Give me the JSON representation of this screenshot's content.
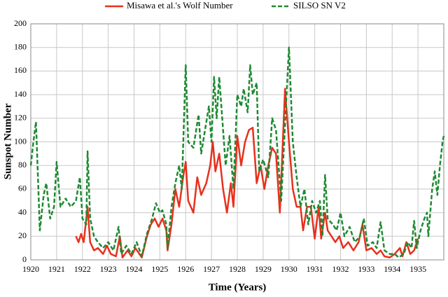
{
  "chart_data": {
    "type": "line",
    "xlabel": "Time (Years)",
    "ylabel": "Sunspot Number",
    "xlim": [
      1920,
      1936
    ],
    "xticks": [
      1920,
      1921,
      1922,
      1923,
      1924,
      1925,
      1926,
      1927,
      1928,
      1929,
      1930,
      1931,
      1932,
      1933,
      1934,
      1935
    ],
    "ylim": [
      0,
      200
    ],
    "yticks": [
      0,
      20,
      40,
      60,
      80,
      100,
      120,
      140,
      160,
      180,
      200
    ],
    "grid": true,
    "legend": "top",
    "series": [
      {
        "name": "Misawa et al.'s Wolf Number",
        "color": "#e8301c",
        "dash": false,
        "x": [
          1921.75,
          1921.85,
          1921.95,
          1922.05,
          1922.2,
          1922.3,
          1922.45,
          1922.6,
          1922.8,
          1922.95,
          1923.1,
          1923.3,
          1923.45,
          1923.55,
          1923.75,
          1923.9,
          1924.05,
          1924.3,
          1924.5,
          1924.65,
          1924.8,
          1924.95,
          1925.1,
          1925.25,
          1925.3,
          1925.45,
          1925.6,
          1925.75,
          1925.9,
          1926.0,
          1926.1,
          1926.3,
          1926.45,
          1926.6,
          1926.8,
          1926.95,
          1927.05,
          1927.15,
          1927.3,
          1927.45,
          1927.6,
          1927.75,
          1927.85,
          1928.0,
          1928.15,
          1928.3,
          1928.45,
          1928.6,
          1928.75,
          1928.9,
          1929.05,
          1929.2,
          1929.35,
          1929.5,
          1929.65,
          1929.85,
          1930.0,
          1930.15,
          1930.3,
          1930.45,
          1930.55,
          1930.7,
          1930.85,
          1931.0,
          1931.15,
          1931.25,
          1931.4,
          1931.5,
          1931.65,
          1931.8,
          1931.95,
          1932.1,
          1932.3,
          1932.5,
          1932.7,
          1932.85,
          1933.0,
          1933.2,
          1933.4,
          1933.55,
          1933.7,
          1933.9,
          1934.1,
          1934.3,
          1934.4,
          1934.55,
          1934.7,
          1934.85,
          1935.0
        ],
        "values": [
          20,
          15,
          22,
          15,
          45,
          15,
          8,
          10,
          5,
          12,
          5,
          3,
          20,
          2,
          8,
          3,
          10,
          2,
          20,
          30,
          35,
          28,
          35,
          25,
          8,
          30,
          60,
          45,
          70,
          83,
          50,
          40,
          70,
          55,
          65,
          80,
          100,
          75,
          90,
          60,
          40,
          65,
          45,
          105,
          80,
          100,
          110,
          112,
          65,
          80,
          60,
          80,
          95,
          90,
          40,
          145,
          100,
          60,
          45,
          45,
          25,
          45,
          45,
          18,
          45,
          18,
          40,
          25,
          20,
          15,
          20,
          10,
          15,
          8,
          15,
          30,
          8,
          10,
          5,
          8,
          3,
          2,
          5,
          10,
          3,
          15,
          5,
          8,
          18
        ]
      },
      {
        "name": "SILSO SN V2",
        "color": "#1e8a32",
        "dash": true,
        "x": [
          1920.0,
          1920.1,
          1920.2,
          1920.35,
          1920.5,
          1920.6,
          1920.75,
          1920.9,
          1921.0,
          1921.15,
          1921.35,
          1921.55,
          1921.75,
          1921.9,
          1922.0,
          1922.15,
          1922.2,
          1922.3,
          1922.45,
          1922.6,
          1922.8,
          1923.0,
          1923.2,
          1923.4,
          1923.5,
          1923.7,
          1923.9,
          1924.1,
          1924.3,
          1924.5,
          1924.7,
          1924.85,
          1925.0,
          1925.1,
          1925.25,
          1925.3,
          1925.45,
          1925.6,
          1925.75,
          1925.85,
          1926.0,
          1926.1,
          1926.3,
          1926.5,
          1926.6,
          1926.75,
          1926.9,
          1927.0,
          1927.1,
          1927.2,
          1927.3,
          1927.45,
          1927.55,
          1927.7,
          1927.85,
          1928.0,
          1928.15,
          1928.25,
          1928.4,
          1928.5,
          1928.6,
          1928.75,
          1928.85,
          1929.0,
          1929.2,
          1929.35,
          1929.5,
          1929.7,
          1930.0,
          1930.15,
          1930.3,
          1930.45,
          1930.6,
          1930.75,
          1930.9,
          1931.05,
          1931.2,
          1931.3,
          1931.4,
          1931.5,
          1931.7,
          1931.85,
          1932.0,
          1932.15,
          1932.35,
          1932.55,
          1932.75,
          1932.9,
          1933.05,
          1933.25,
          1933.4,
          1933.55,
          1933.7,
          1933.9,
          1934.1,
          1934.25,
          1934.45,
          1934.6,
          1934.75,
          1934.85,
          1934.95,
          1935.1,
          1935.25,
          1935.35,
          1935.4,
          1935.55,
          1935.65,
          1935.75,
          1935.85,
          1935.95,
          1936.0
        ],
        "values": [
          80,
          100,
          117,
          25,
          55,
          65,
          35,
          45,
          83,
          45,
          52,
          45,
          50,
          70,
          35,
          30,
          92,
          35,
          20,
          15,
          10,
          15,
          8,
          28,
          5,
          12,
          5,
          15,
          3,
          22,
          35,
          48,
          40,
          42,
          30,
          10,
          45,
          65,
          80,
          60,
          165,
          100,
          95,
          123,
          90,
          110,
          130,
          100,
          155,
          120,
          155,
          110,
          80,
          105,
          60,
          140,
          130,
          145,
          125,
          165,
          140,
          150,
          75,
          85,
          70,
          120,
          110,
          50,
          180,
          100,
          70,
          45,
          60,
          30,
          50,
          40,
          50,
          20,
          72,
          35,
          30,
          25,
          40,
          20,
          28,
          15,
          20,
          35,
          12,
          15,
          10,
          32,
          8,
          5,
          5,
          2,
          5,
          15,
          10,
          33,
          10,
          25,
          35,
          40,
          20,
          60,
          75,
          55,
          80,
          100,
          105
        ]
      }
    ]
  }
}
